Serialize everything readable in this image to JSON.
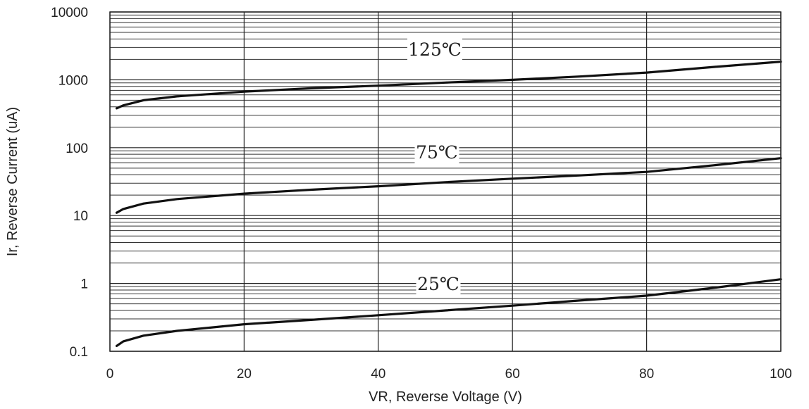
{
  "chart_data": {
    "type": "line",
    "title": "",
    "xlabel": "VR, Reverse Voltage (V)",
    "ylabel": "Ir, Reverse Current (uA)",
    "xlim": [
      0,
      100
    ],
    "ylim": [
      0.1,
      10000
    ],
    "yscale": "log",
    "grid": true,
    "x_ticks": [
      "0",
      "20",
      "40",
      "60",
      "80",
      "100"
    ],
    "y_ticks": [
      "0.1",
      "1",
      "10",
      "100",
      "1000",
      "10000"
    ],
    "series": [
      {
        "name": "125℃",
        "x": [
          1,
          2,
          5,
          10,
          20,
          30,
          40,
          50,
          60,
          70,
          80,
          90,
          100
        ],
        "y": [
          380,
          420,
          500,
          570,
          670,
          750,
          820,
          910,
          1000,
          1120,
          1280,
          1550,
          1850
        ]
      },
      {
        "name": "75℃",
        "x": [
          1,
          2,
          5,
          10,
          20,
          30,
          40,
          50,
          60,
          70,
          80,
          90,
          100
        ],
        "y": [
          11,
          12.5,
          15,
          17.5,
          21,
          24,
          27,
          31,
          35,
          39,
          44,
          55,
          70
        ]
      },
      {
        "name": "25℃",
        "x": [
          1,
          2,
          5,
          10,
          20,
          30,
          40,
          50,
          60,
          70,
          80,
          90,
          100
        ],
        "y": [
          0.12,
          0.14,
          0.17,
          0.2,
          0.25,
          0.29,
          0.34,
          0.4,
          0.47,
          0.56,
          0.66,
          0.86,
          1.15
        ]
      }
    ]
  }
}
